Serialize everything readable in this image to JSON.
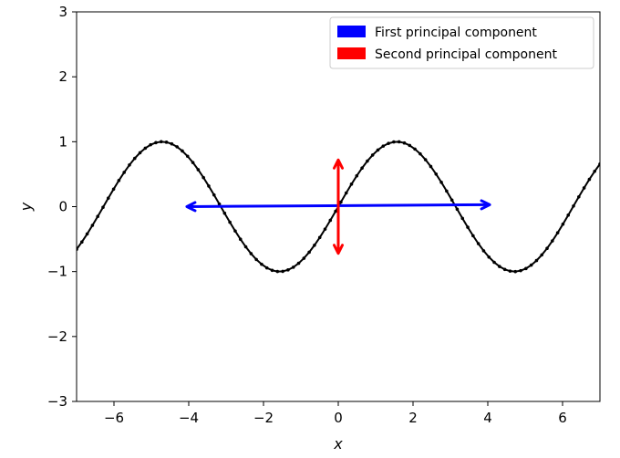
{
  "chart_data": {
    "type": "line",
    "title": "",
    "xlabel": "x",
    "ylabel": "y",
    "xlim": [
      -7,
      7
    ],
    "ylim": [
      -3,
      3
    ],
    "xticks": [
      -6,
      -4,
      -2,
      0,
      2,
      4,
      6
    ],
    "yticks": [
      -3,
      -2,
      -1,
      0,
      1,
      2,
      3
    ],
    "grid": false,
    "legend_position": "top-right",
    "series": [
      {
        "name": "",
        "kind": "line-with-markers",
        "function": "sin(x)",
        "x_start": -7,
        "x_end": 7,
        "num_points": 100,
        "color": "#000000"
      }
    ],
    "arrows": [
      {
        "name": "First principal component",
        "from": [
          -4.05,
          0.0
        ],
        "to": [
          4.05,
          0.03
        ],
        "color": "#0000ff",
        "double_headed": true
      },
      {
        "name": "Second principal component",
        "from": [
          0.0,
          -0.72
        ],
        "to": [
          0.0,
          0.72
        ],
        "color": "#ff0000",
        "double_headed": true
      }
    ],
    "legend": [
      {
        "label": "First principal component",
        "color": "#0000ff"
      },
      {
        "label": "Second principal component",
        "color": "#ff0000"
      }
    ]
  }
}
